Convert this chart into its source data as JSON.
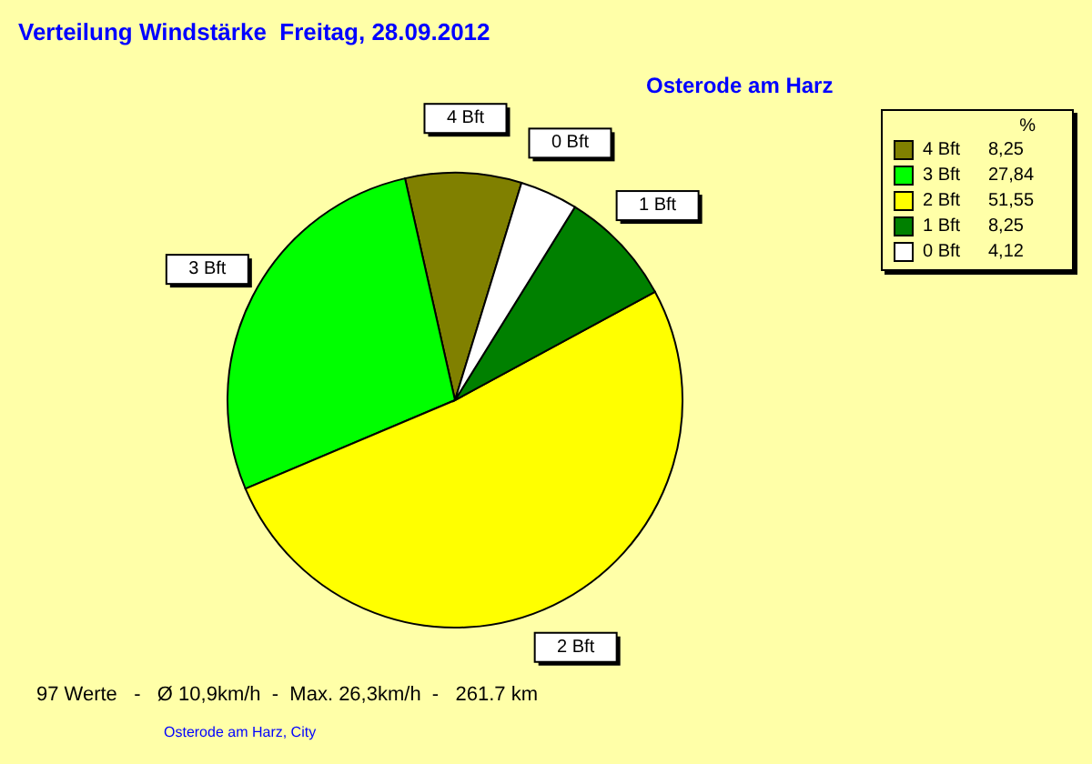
{
  "chart_data": {
    "type": "pie",
    "title": "Verteilung Windstärke  Freitag, 28.09.2012",
    "subtitle": "Osterode am Harz",
    "legend_title": "%",
    "legend": "top right",
    "categories": [
      "4 Bft",
      "3 Bft",
      "2 Bft",
      "1 Bft",
      "0 Bft"
    ],
    "values": [
      8.25,
      27.84,
      51.55,
      8.25,
      4.12
    ],
    "value_labels": [
      "8,25",
      "27,84",
      "51,55",
      "8,25",
      "4,12"
    ],
    "colors": [
      "#808000",
      "#00ff00",
      "#ffff00",
      "#008000",
      "#ffffff"
    ],
    "annotations": [
      "97 Werte   -   Ø 10,9km/h  -  Max. 26,3km/h  -   261.7 km",
      "Osterode am Harz, City"
    ]
  }
}
